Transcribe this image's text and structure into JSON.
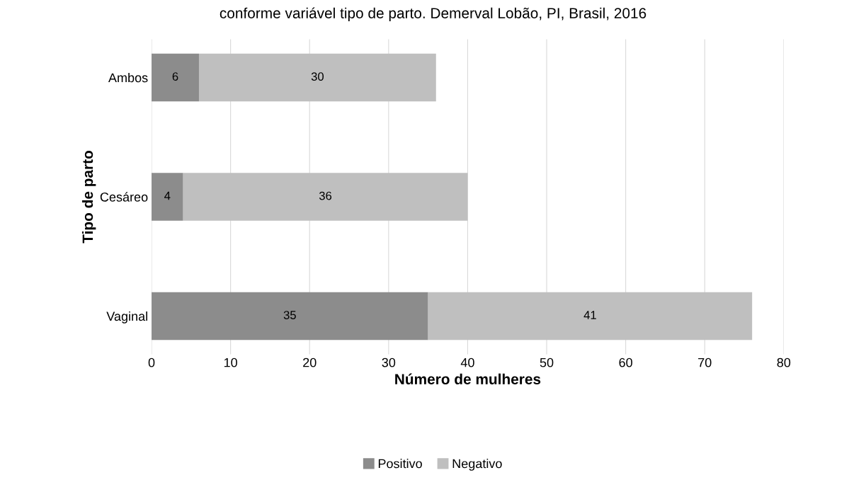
{
  "chart_data": {
    "type": "bar",
    "orientation": "horizontal",
    "stacked": true,
    "title": "conforme variável tipo de parto. Demerval Lobão, PI, Brasil, 2016",
    "xlabel": "Número de mulheres",
    "ylabel": "Tipo de parto",
    "categories": [
      "Ambos",
      "Cesáreo",
      "Vaginal"
    ],
    "series": [
      {
        "name": "Positivo",
        "color": "#8c8c8c",
        "values": [
          6,
          4,
          35
        ]
      },
      {
        "name": "Negativo",
        "color": "#bfbfbf",
        "values": [
          30,
          36,
          41
        ]
      }
    ],
    "xlim": [
      0,
      80
    ],
    "xticks": [
      0,
      10,
      20,
      30,
      40,
      50,
      60,
      70,
      80
    ],
    "grid": "x",
    "legend": "bottom",
    "data_labels": true
  }
}
